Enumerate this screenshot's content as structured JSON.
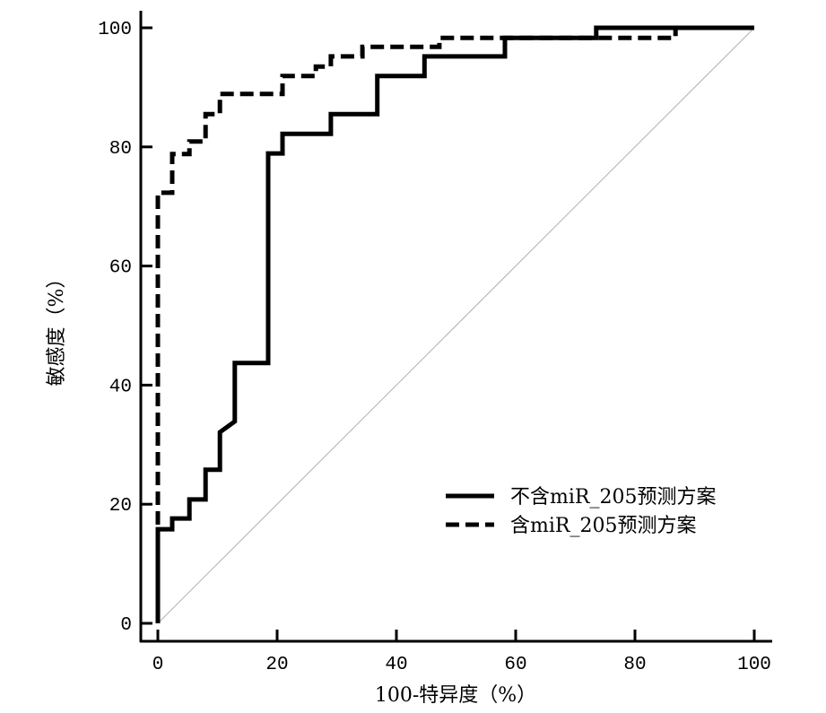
{
  "chart_data": {
    "type": "line",
    "xlabel": "100-特异度（%）",
    "ylabel": "敏感度（%）",
    "xlim": [
      0,
      100
    ],
    "ylim": [
      0,
      100
    ],
    "xticks": [
      0,
      20,
      40,
      60,
      80,
      100
    ],
    "yticks": [
      0,
      20,
      40,
      60,
      80,
      100
    ],
    "grid": false,
    "legend_position": "lower-right",
    "reference_line": {
      "x": [
        0,
        100
      ],
      "y": [
        0,
        100
      ],
      "color": "#b0b0b0"
    },
    "series": [
      {
        "name": "不含miR_205预测方案",
        "dashed": false,
        "color": "#000000",
        "x": [
          0,
          0,
          2.4,
          2.4,
          5.3,
          5.3,
          8.0,
          8.0,
          10.4,
          10.4,
          12.9,
          12.9,
          18.5,
          18.5,
          20.9,
          20.9,
          29.0,
          29.0,
          36.8,
          36.8,
          44.7,
          44.7,
          58.2,
          58.2,
          73.5,
          73.5,
          100
        ],
        "y": [
          0,
          15.8,
          15.8,
          17.6,
          17.6,
          20.8,
          20.8,
          25.8,
          25.8,
          32.1,
          33.9,
          43.7,
          43.7,
          78.9,
          78.9,
          82.2,
          82.2,
          85.5,
          85.5,
          91.9,
          91.9,
          95.2,
          95.2,
          98.3,
          98.3,
          100,
          100
        ]
      },
      {
        "name": "含miR_205预测方案",
        "dashed": true,
        "color": "#000000",
        "x": [
          0,
          0,
          2.4,
          2.4,
          5.3,
          5.3,
          8.0,
          8.0,
          10.4,
          10.4,
          20.9,
          20.9,
          26.5,
          26.5,
          29.0,
          29.0,
          34.3,
          34.3,
          47.2,
          47.2,
          86.8,
          86.8,
          100
        ],
        "y": [
          0,
          72.3,
          72.3,
          78.8,
          78.8,
          80.9,
          80.9,
          85.5,
          85.5,
          88.9,
          88.9,
          91.9,
          91.9,
          93.5,
          93.5,
          95.2,
          95.2,
          96.8,
          96.8,
          98.3,
          98.3,
          100,
          100
        ]
      }
    ]
  }
}
